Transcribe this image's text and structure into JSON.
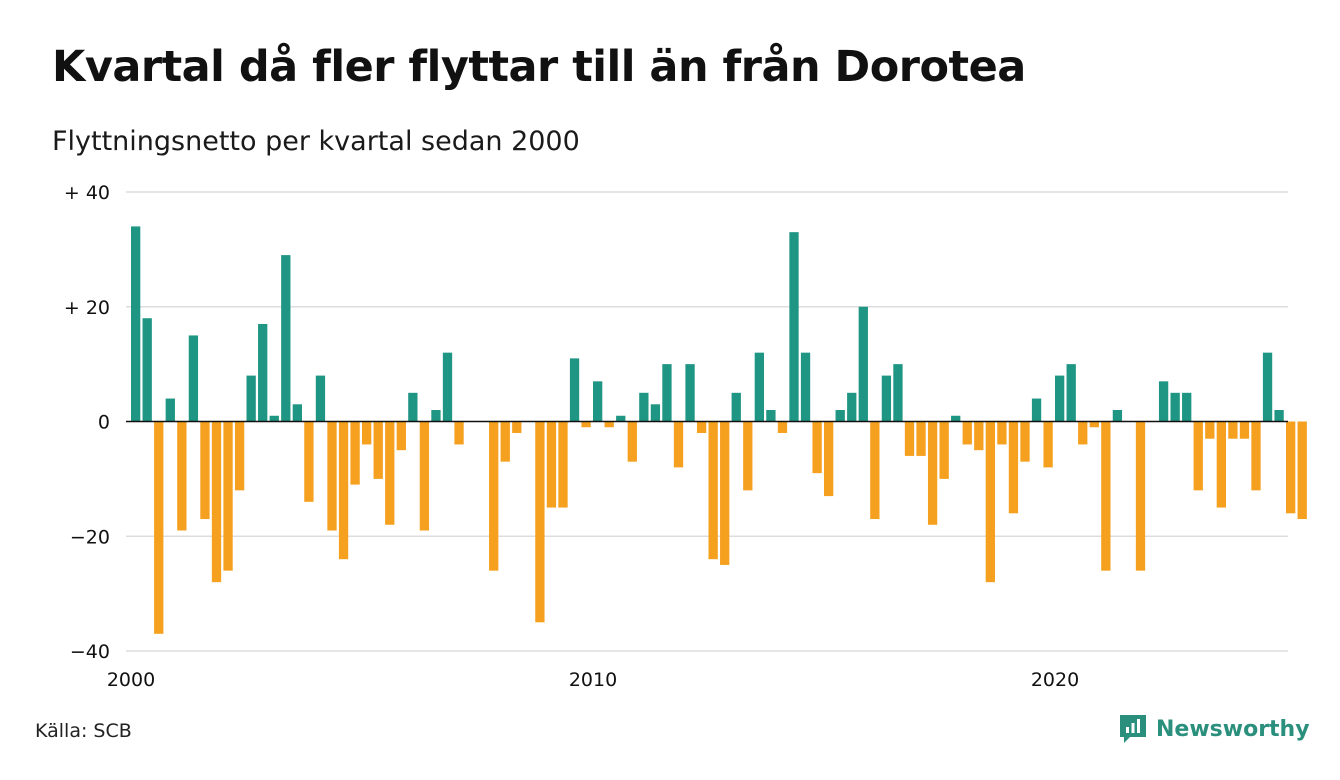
{
  "header": {
    "title": "Kvartal då fler flyttar till än från Dorotea",
    "subtitle": "Flyttningsnetto per kvartal sedan 2000"
  },
  "footer": {
    "source": "Källa: SCB",
    "brand": "Newsworthy"
  },
  "colors": {
    "positive": "#1f9583",
    "negative": "#f5a01e",
    "grid": "#dddddd",
    "brand": "#2a8f7d"
  },
  "chart_data": {
    "type": "bar",
    "title": "Kvartal då fler flyttar till än från Dorotea",
    "subtitle": "Flyttningsnetto per kvartal sedan 2000",
    "xlabel": "",
    "ylabel": "",
    "ylim": [
      -40,
      40
    ],
    "yticks": [
      -40,
      -20,
      0,
      20,
      40
    ],
    "ytick_labels": [
      "−40",
      "−20",
      "0",
      "+ 20",
      "+ 40"
    ],
    "xticks": [
      "2000",
      "2010",
      "2020"
    ],
    "x_start": "2000 Q1",
    "grid": true,
    "values": [
      34,
      18,
      -37,
      4,
      -19,
      15,
      -17,
      -28,
      -26,
      -12,
      8,
      17,
      1,
      29,
      3,
      -14,
      8,
      -19,
      -24,
      -11,
      -4,
      -10,
      -18,
      -5,
      5,
      -19,
      2,
      12,
      -4,
      0,
      0,
      -26,
      -7,
      -2,
      0,
      -35,
      -15,
      -15,
      11,
      -1,
      7,
      -1,
      1,
      -7,
      5,
      3,
      10,
      -8,
      10,
      -2,
      -24,
      -25,
      5,
      -12,
      12,
      2,
      -2,
      33,
      12,
      -9,
      -13,
      2,
      5,
      20,
      -17,
      8,
      10,
      -6,
      -6,
      -18,
      -10,
      1,
      -4,
      -5,
      -28,
      -4,
      -16,
      -7,
      4,
      -8,
      8,
      10,
      -4,
      -1,
      -26,
      2,
      0,
      -26,
      0,
      7,
      5,
      5,
      -12,
      -3,
      -15,
      -3,
      -3,
      -12,
      12,
      2,
      -16,
      -17
    ]
  }
}
